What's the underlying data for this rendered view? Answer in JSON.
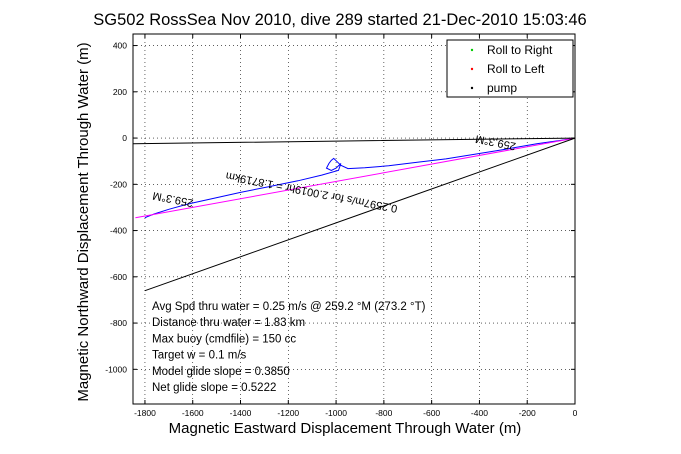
{
  "chart_data": {
    "type": "line",
    "title": "SG502 RossSea Nov 2010, dive 289 started 21-Dec-2010 15:03:46",
    "xlabel": "Magnetic Eastward Displacement Through Water (m)",
    "ylabel": "Magnetic Northward Displacement Through Water (m)",
    "xlim": [
      -1850,
      0
    ],
    "ylim": [
      -1150,
      450
    ],
    "x_ticks": [
      -1800,
      -1600,
      -1400,
      -1200,
      -1000,
      -800,
      -600,
      -400,
      -200,
      0
    ],
    "y_ticks": [
      -1000,
      -800,
      -600,
      -400,
      -200,
      0,
      200,
      400
    ],
    "x_tick_labels": [
      "-1800",
      "-1600",
      "-1400",
      "-1200",
      "-1000",
      "-800",
      "-600",
      "-400",
      "-200",
      "0"
    ],
    "y_tick_labels": [
      "-1000",
      "-800",
      "-600",
      "-400",
      "-200",
      "0",
      "200",
      "400"
    ],
    "grid": true,
    "legend_position": "top-right",
    "legend": [
      {
        "label": "Roll to Right",
        "color": "#00cc00"
      },
      {
        "label": "Roll to Left",
        "color": "#ff0000"
      },
      {
        "label": "pump",
        "color": "#000000"
      }
    ],
    "series": [
      {
        "color": "#0000ff",
        "x": [
          0,
          -60,
          -160,
          -300,
          -420,
          -540,
          -660,
          -780,
          -880,
          -950,
          -980,
          -1000,
          -1010,
          -1020,
          -1030,
          -1040,
          -1020,
          -1000,
          -980,
          -990,
          -1060,
          -1160,
          -1280,
          -1400,
          -1520,
          -1620,
          -1700,
          -1760,
          -1790,
          -1800
        ],
        "y": [
          0,
          -10,
          -25,
          -50,
          -70,
          -90,
          -105,
          -120,
          -128,
          -132,
          -118,
          -98,
          -88,
          -96,
          -110,
          -130,
          -140,
          -130,
          -110,
          -140,
          -160,
          -185,
          -210,
          -235,
          -262,
          -285,
          -308,
          -328,
          -340,
          -345
        ]
      },
      {
        "color": "#ff00ff",
        "x": [
          0,
          -1840
        ],
        "y": [
          0,
          -345
        ]
      },
      {
        "color": "#000000",
        "x": [
          0,
          -1800
        ],
        "y": [
          0,
          -660
        ]
      },
      {
        "color": "#000000",
        "x": [
          -1850,
          -400,
          0
        ],
        "y": [
          -25,
          -5,
          0
        ]
      }
    ],
    "annotations": [
      {
        "text": "259.3°M",
        "x": -1680,
        "y": -250,
        "angle": 191
      },
      {
        "text": "0.2597m/s for 2.0019hr = 1.8719km",
        "x": -1100,
        "y": -220,
        "angle": 191
      },
      {
        "text": "259.3°M",
        "x": -330,
        "y": -5,
        "angle": 191
      }
    ],
    "stats": [
      "Avg Spd thru water =  0.25 m/s @ 259.2   °M (273.2 °T)",
      "Distance thru water =  1.83 km",
      "Max buoy (cmdfile) = 150 cc",
      "Target w = 0.1 m/s",
      "Model glide slope = 0.3850",
      "Net glide slope = 0.5222"
    ]
  }
}
